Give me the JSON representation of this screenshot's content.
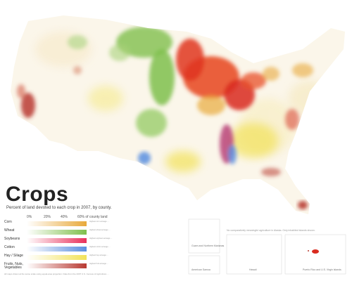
{
  "map": {
    "title": "Crops",
    "subtitle": "Percent of land devoted to each crop in 2007, by county.",
    "scale_ticks": [
      "0%",
      "20%",
      "40%",
      "60% of county land"
    ],
    "legend": [
      {
        "label": "Corn",
        "color": "#e8a93b",
        "note": "Highest corn acreage ..."
      },
      {
        "label": "Wheat",
        "color": "#7fbf4d",
        "note": "Highest wheat acreage ..."
      },
      {
        "label": "Soybeans",
        "color": "#e8305a",
        "note": "Highest soybean acreage ..."
      },
      {
        "label": "Cotton",
        "color": "#5b8fe0",
        "note": "Highest cotton acreage ..."
      },
      {
        "label": "Hay / Silage",
        "color": "#f2e25a",
        "note": "Highest hay acreage ..."
      },
      {
        "label": "Fruits, Nuts, Vegetables",
        "color": "#b83a32",
        "note": "Highest fruit acreage ..."
      }
    ],
    "footnote": "All maps drawn at the same scale using equal-area projection. Data from the 2007 U.S. Census of Agriculture ...",
    "inset_note": "No comparatively meaningful agriculture in Alaska. Only inhabited islands shown.",
    "insets": [
      {
        "label": "Guam and Northern Marianas"
      },
      {
        "label": "American Samoa"
      },
      {
        "label": "Hawaii"
      },
      {
        "label": "Puerto Rico and U.S. Virgin Islands"
      }
    ],
    "colors": {
      "corn": "#e8a93b",
      "wheat": "#7fbf4d",
      "soy": "#e8305a",
      "cotton": "#5b8fe0",
      "hay": "#f2e25a",
      "fruit": "#b83a32",
      "mixed_red": "#d92b1f"
    }
  }
}
